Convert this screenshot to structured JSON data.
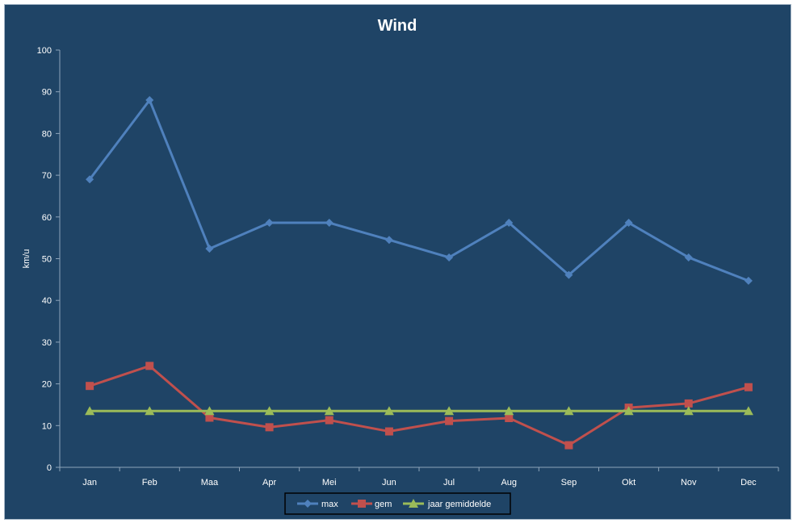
{
  "chart_data": {
    "type": "line",
    "title": "Wind",
    "xlabel": "",
    "ylabel": "km/u",
    "ylim": [
      0,
      100
    ],
    "yticks": [
      0,
      10,
      20,
      30,
      40,
      50,
      60,
      70,
      80,
      90,
      100
    ],
    "categories": [
      "Jan",
      "Feb",
      "Maa",
      "Apr",
      "Mei",
      "Jun",
      "Jul",
      "Aug",
      "Sep",
      "Okt",
      "Nov",
      "Dec"
    ],
    "grid": false,
    "legend_position": "bottom",
    "background_color": "#1f4466",
    "series": [
      {
        "name": "max",
        "marker": "diamond",
        "color": "#4f81bd",
        "values": [
          69,
          88,
          52.4,
          58.6,
          58.6,
          54.5,
          50.3,
          58.6,
          46.1,
          58.6,
          50.3,
          44.7
        ]
      },
      {
        "name": "gem",
        "marker": "square",
        "color": "#c0504d",
        "values": [
          19.5,
          24.3,
          11.9,
          9.6,
          11.3,
          8.6,
          11.1,
          11.8,
          5.3,
          14.3,
          15.3,
          19.2
        ]
      },
      {
        "name": "jaar gemiddelde",
        "marker": "triangle",
        "color": "#9bbb59",
        "values": [
          13.5,
          13.5,
          13.5,
          13.5,
          13.5,
          13.5,
          13.5,
          13.5,
          13.5,
          13.5,
          13.5,
          13.5
        ]
      }
    ]
  }
}
